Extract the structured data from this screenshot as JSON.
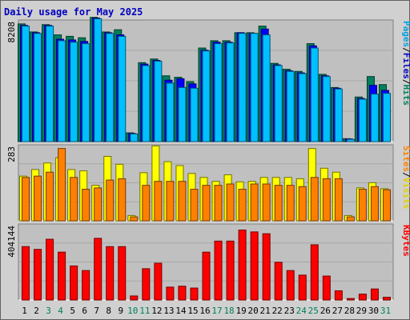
{
  "title": "Daily usage for May 2025",
  "chart_data": [
    {
      "type": "bar",
      "title": "Daily usage for May 2025",
      "categories": [
        "1",
        "2",
        "3",
        "4",
        "5",
        "6",
        "7",
        "8",
        "9",
        "10",
        "11",
        "12",
        "13",
        "14",
        "15",
        "16",
        "17",
        "18",
        "19",
        "20",
        "21",
        "22",
        "23",
        "24",
        "25",
        "26",
        "27",
        "28",
        "29",
        "30",
        "31"
      ],
      "weekend_days": [
        "3",
        "4",
        "10",
        "11",
        "17",
        "18",
        "24",
        "25",
        "31"
      ],
      "ylim": [
        0,
        8208
      ],
      "ymax_label": "8208",
      "axis_labels": [
        {
          "text": "Pages",
          "color": "#00a0e0"
        },
        {
          "text": "Files",
          "color": "#0000c0"
        },
        {
          "text": "Hits",
          "color": "#008060"
        }
      ],
      "series": [
        {
          "name": "Hits",
          "color": "#00805c",
          "values": [
            8050,
            7500,
            8000,
            7300,
            7200,
            7100,
            8500,
            7500,
            7650,
            600,
            5400,
            5650,
            4500,
            4400,
            4100,
            6400,
            6900,
            6900,
            7450,
            7450,
            7900,
            5350,
            4950,
            4800,
            6700,
            4600,
            3700,
            200,
            3050,
            4450,
            3900
          ]
        },
        {
          "name": "Files",
          "color": "#0000ff",
          "values": [
            7950,
            7450,
            7950,
            7000,
            6950,
            6850,
            8450,
            7450,
            7300,
            550,
            5300,
            5550,
            4200,
            4300,
            3950,
            6250,
            6800,
            6800,
            7450,
            7400,
            7700,
            5250,
            4850,
            4700,
            6550,
            4500,
            3650,
            180,
            2950,
            3850,
            3500
          ]
        },
        {
          "name": "Pages",
          "color": "#00c0ff",
          "values": [
            7900,
            7400,
            7900,
            6900,
            6800,
            6700,
            8400,
            7400,
            7200,
            520,
            5200,
            5500,
            4000,
            3700,
            3650,
            6200,
            6700,
            6750,
            7400,
            7400,
            7300,
            5200,
            4800,
            4650,
            6400,
            4450,
            3600,
            150,
            2900,
            3250,
            3300
          ]
        }
      ]
    },
    {
      "type": "bar",
      "title": "",
      "categories": [
        "1",
        "2",
        "3",
        "4",
        "5",
        "6",
        "7",
        "8",
        "9",
        "10",
        "11",
        "12",
        "13",
        "14",
        "15",
        "16",
        "17",
        "18",
        "19",
        "20",
        "21",
        "22",
        "23",
        "24",
        "25",
        "26",
        "27",
        "28",
        "29",
        "30",
        "31"
      ],
      "ylim": [
        0,
        283
      ],
      "ymax_label": "283",
      "axis_labels": [
        {
          "text": "Sites",
          "color": "#ff8000"
        },
        {
          "text": "Visits",
          "color": "#e0d000"
        }
      ],
      "series": [
        {
          "name": "Visits",
          "color": "#ffff00",
          "values": [
            170,
            195,
            220,
            240,
            195,
            190,
            135,
            245,
            215,
            20,
            183,
            285,
            225,
            210,
            180,
            165,
            150,
            175,
            148,
            150,
            165,
            165,
            165,
            160,
            275,
            200,
            185,
            20,
            125,
            145,
            122
          ]
        },
        {
          "name": "Sites",
          "color": "#ff8000",
          "values": [
            165,
            170,
            185,
            275,
            165,
            120,
            125,
            155,
            160,
            15,
            135,
            150,
            150,
            150,
            120,
            135,
            135,
            140,
            120,
            140,
            140,
            135,
            135,
            130,
            165,
            160,
            160,
            15,
            120,
            130,
            118
          ]
        }
      ]
    },
    {
      "type": "bar",
      "title": "",
      "categories": [
        "1",
        "2",
        "3",
        "4",
        "5",
        "6",
        "7",
        "8",
        "9",
        "10",
        "11",
        "12",
        "13",
        "14",
        "15",
        "16",
        "17",
        "18",
        "19",
        "20",
        "21",
        "22",
        "23",
        "24",
        "25",
        "26",
        "27",
        "28",
        "29",
        "30",
        "31"
      ],
      "ylim": [
        0,
        404144
      ],
      "ymax_label": "404144",
      "axis_labels": [
        {
          "text": "KBytes",
          "color": "#ff0000"
        }
      ],
      "series": [
        {
          "name": "KBytes",
          "color": "#ff0000",
          "values": [
            290000,
            275000,
            330000,
            260000,
            185000,
            160000,
            335000,
            290000,
            290000,
            22000,
            170000,
            200000,
            70000,
            75000,
            65000,
            260000,
            320000,
            320000,
            380000,
            370000,
            360000,
            205000,
            160000,
            135000,
            300000,
            130000,
            50000,
            8000,
            32000,
            60000,
            15000
          ]
        }
      ]
    }
  ]
}
